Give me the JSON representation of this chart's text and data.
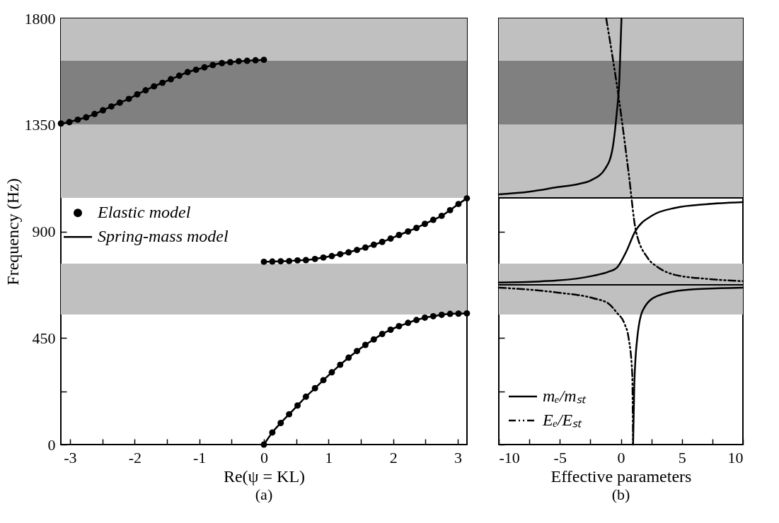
{
  "chart_data": [
    {
      "type": "scatter",
      "xlabel": "Re(ψ = KL)",
      "ylabel": "Frequency (Hz)",
      "annotations": [
        "(a)"
      ],
      "xlim": [
        -3.1416,
        3.1416
      ],
      "xticks": [
        -3,
        {
          "value": -2.5,
          "label": null
        },
        -2,
        {
          "value": -1.5,
          "label": null
        },
        -1,
        {
          "value": -0.5,
          "label": null
        },
        0,
        {
          "value": 0.5,
          "label": null
        },
        1,
        {
          "value": 1.5,
          "label": null
        },
        2,
        {
          "value": 2.5,
          "label": null
        },
        3
      ],
      "ylim": [
        0,
        1800
      ],
      "yticks": [
        0,
        {
          "value": 225,
          "label": null
        },
        450,
        {
          "value": 675,
          "label": null
        },
        900,
        {
          "value": 1125,
          "label": null
        },
        1350,
        {
          "value": 1575,
          "label": null
        },
        1800
      ],
      "grid": false,
      "legend": "left",
      "bands": [
        {
          "axis": "y",
          "from": 549,
          "to": 764,
          "color": "#c0c0c0"
        },
        {
          "axis": "y",
          "from": 1042,
          "to": 1800,
          "color": "#c0c0c0"
        },
        {
          "axis": "y",
          "from": 1352,
          "to": 1621,
          "color": "#808080"
        }
      ],
      "series": [
        {
          "name": "Elastic model",
          "marker": "circle",
          "color": "#000000",
          "x": [
            0,
            0.13,
            0.26,
            0.39,
            0.52,
            0.65,
            0.79,
            0.92,
            1.05,
            1.18,
            1.31,
            1.44,
            1.57,
            1.7,
            1.83,
            1.96,
            2.09,
            2.23,
            2.36,
            2.49,
            2.62,
            2.75,
            2.88,
            3.01,
            3.14,
            0,
            0.13,
            0.26,
            0.39,
            0.52,
            0.65,
            0.79,
            0.92,
            1.05,
            1.18,
            1.31,
            1.44,
            1.57,
            1.7,
            1.83,
            1.96,
            2.09,
            2.23,
            2.36,
            2.49,
            2.62,
            2.75,
            2.88,
            3.01,
            3.14,
            -3.14,
            -3.01,
            -2.88,
            -2.75,
            -2.62,
            -2.49,
            -2.36,
            -2.23,
            -2.09,
            -1.96,
            -1.83,
            -1.7,
            -1.57,
            -1.44,
            -1.31,
            -1.18,
            -1.05,
            -0.92,
            -0.79,
            -0.65,
            -0.52,
            -0.39,
            -0.26,
            -0.13,
            0
          ],
          "values": [
            0,
            51,
            91,
            128,
            165,
            202,
            238,
            272,
            305,
            337,
            367,
            395,
            421,
            444,
            467,
            485,
            500,
            514,
            526,
            536,
            542,
            548,
            552,
            553,
            554,
            772,
            773,
            774,
            775,
            778,
            779,
            784,
            790,
            796,
            804,
            812,
            822,
            832,
            844,
            856,
            870,
            885,
            900,
            915,
            932,
            949,
            966,
            990,
            1016,
            1040,
            1356,
            1362,
            1372,
            1382,
            1396,
            1412,
            1428,
            1444,
            1460,
            1479,
            1496,
            1513,
            1528,
            1543,
            1558,
            1573,
            1583,
            1593,
            1603,
            1611,
            1615,
            1619,
            1621,
            1623,
            1625
          ]
        },
        {
          "name": "Spring-mass model",
          "type": "line",
          "color": "#000000",
          "x": [
            0,
            0.13,
            0.26,
            0.39,
            0.52,
            0.65,
            0.79,
            0.92,
            1.05,
            1.18,
            1.31,
            1.44,
            1.57,
            1.7,
            1.83,
            1.96,
            2.09,
            2.23,
            2.36,
            2.49,
            2.62,
            2.75,
            2.88,
            3.01,
            3.14,
            null,
            0,
            0.13,
            0.26,
            0.39,
            0.52,
            0.65,
            0.79,
            0.92,
            1.05,
            1.18,
            1.31,
            1.44,
            1.57,
            1.7,
            1.83,
            1.96,
            2.09,
            2.23,
            2.36,
            2.49,
            2.62,
            2.75,
            2.88,
            3.01,
            3.14,
            null,
            -3.14,
            -3.01,
            -2.88,
            -2.75,
            -2.62,
            -2.49,
            -2.36,
            -2.23,
            -2.09,
            -1.96,
            -1.83,
            -1.7,
            -1.57,
            -1.44,
            -1.31,
            -1.18,
            -1.05,
            -0.92,
            -0.79,
            -0.65,
            -0.52,
            -0.39,
            -0.26,
            -0.13,
            0
          ],
          "values": [
            0,
            51,
            91,
            128,
            165,
            202,
            238,
            272,
            305,
            337,
            367,
            395,
            421,
            444,
            467,
            485,
            500,
            514,
            526,
            536,
            542,
            548,
            552,
            553,
            554,
            null,
            772,
            773,
            774,
            775,
            778,
            779,
            784,
            790,
            796,
            804,
            812,
            822,
            832,
            844,
            856,
            870,
            885,
            900,
            915,
            932,
            949,
            966,
            990,
            1016,
            1040,
            null,
            1356,
            1362,
            1372,
            1382,
            1396,
            1412,
            1428,
            1444,
            1460,
            1479,
            1496,
            1513,
            1528,
            1543,
            1558,
            1573,
            1583,
            1593,
            1603,
            1611,
            1615,
            1619,
            1621,
            1623,
            1625
          ]
        }
      ]
    },
    {
      "type": "line",
      "xlabel": "Effective parameters",
      "annotations": [
        "(b)"
      ],
      "xlim": [
        -10,
        10
      ],
      "xticks": [
        -10,
        {
          "value": -7.5,
          "label": null
        },
        -5,
        {
          "value": -2.5,
          "label": null
        },
        0,
        {
          "value": 2.5,
          "label": null
        },
        5,
        {
          "value": 7.5,
          "label": null
        },
        10
      ],
      "ylim": [
        0,
        1800
      ],
      "yticks": [
        0,
        {
          "value": 225,
          "label": null
        },
        450,
        {
          "value": 675,
          "label": null
        },
        900,
        {
          "value": 1125,
          "label": null
        },
        1350,
        {
          "value": 1575,
          "label": null
        },
        1800
      ],
      "tick_labels": "x",
      "grid": false,
      "legend": "bottom left",
      "bands": [
        {
          "axis": "y",
          "from": 549,
          "to": 764,
          "color": "#c0c0c0"
        },
        {
          "axis": "y",
          "from": 1042,
          "to": 1800,
          "color": "#c0c0c0"
        },
        {
          "axis": "y",
          "from": 1352,
          "to": 1621,
          "color": "#808080"
        }
      ],
      "ref_lines": [
        {
          "axis": "y",
          "value": 1042,
          "color": "#000000"
        },
        {
          "axis": "y",
          "value": 675,
          "color": "#000000"
        }
      ],
      "series": [
        {
          "name": "mₑ/mₛₜ",
          "color": "#000000",
          "line_style": "solid",
          "x": [
            -10,
            -7.5,
            -5.2,
            -3.5,
            -2.45,
            -1.3,
            -0.7,
            -0.35,
            -0.12,
            0.05,
            null,
            -10,
            -5.2,
            -2.26,
            -1,
            -0.35,
            0.47,
            1.1,
            2.56,
            4.5,
            7,
            10,
            null,
            1.0,
            1.1,
            1.34,
            1.8,
            2.97,
            5.47,
            10
          ],
          "values": [
            1057,
            1068,
            1087,
            1100,
            1116,
            1164,
            1245,
            1394,
            1543,
            1800,
            null,
            684,
            693,
            713,
            730,
            746,
            818,
            893,
            967,
            1000,
            1015,
            1024,
            null,
            0,
            251,
            448,
            567,
            627,
            654,
            663
          ]
        },
        {
          "name": "Eₑ/Eₛₜ",
          "color": "#000000",
          "line_style": "dashed",
          "x": [
            -1.2,
            -0.12,
            0.64,
            1.22,
            2.2,
            3,
            4.5,
            7,
            10,
            null,
            -10,
            -5.2,
            -2.26,
            -1,
            -0.35,
            0.3,
            0.64,
            0.93,
            1.0
          ],
          "values": [
            1800,
            1445,
            1146,
            906,
            788,
            750,
            716,
            700,
            690,
            null,
            663,
            642,
            618,
            595,
            558,
            510,
            448,
            299,
            0
          ]
        }
      ]
    }
  ]
}
